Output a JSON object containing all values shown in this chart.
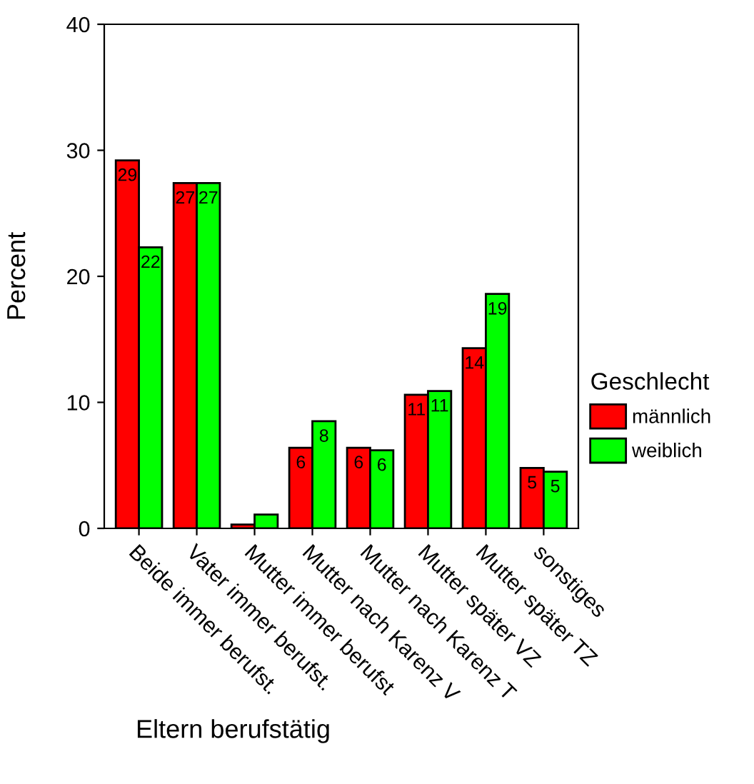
{
  "chart_data": {
    "type": "bar",
    "xlabel": "Eltern berufstätig",
    "ylabel": "Percent",
    "legend_title": "Geschlecht",
    "categories": [
      "Beide immer berufst.",
      "Vater immer berufst.",
      "Mutter immer berufst",
      "Mutter nach Karenz V",
      "Mutter nach Karenz T",
      "Mutter später VZ",
      "Mutter später TZ",
      "sonstiges"
    ],
    "series": [
      {
        "name": "männlich",
        "color": "#ff0000",
        "values": [
          29.2,
          27.4,
          0.3,
          6.4,
          6.4,
          10.6,
          14.3,
          4.8
        ],
        "value_labels": [
          "29",
          "27",
          null,
          "6",
          "6",
          "11",
          "14",
          "5"
        ]
      },
      {
        "name": "weiblich",
        "color": "#00ff00",
        "values": [
          22.3,
          27.4,
          1.1,
          8.5,
          6.2,
          10.9,
          18.6,
          4.5
        ],
        "value_labels": [
          "22",
          "27",
          null,
          "8",
          "6",
          "11",
          "19",
          "5"
        ]
      }
    ],
    "ylim": [
      0,
      40
    ],
    "yticks": [
      0,
      10,
      20,
      30,
      40
    ],
    "grid": false,
    "legend": "right"
  }
}
